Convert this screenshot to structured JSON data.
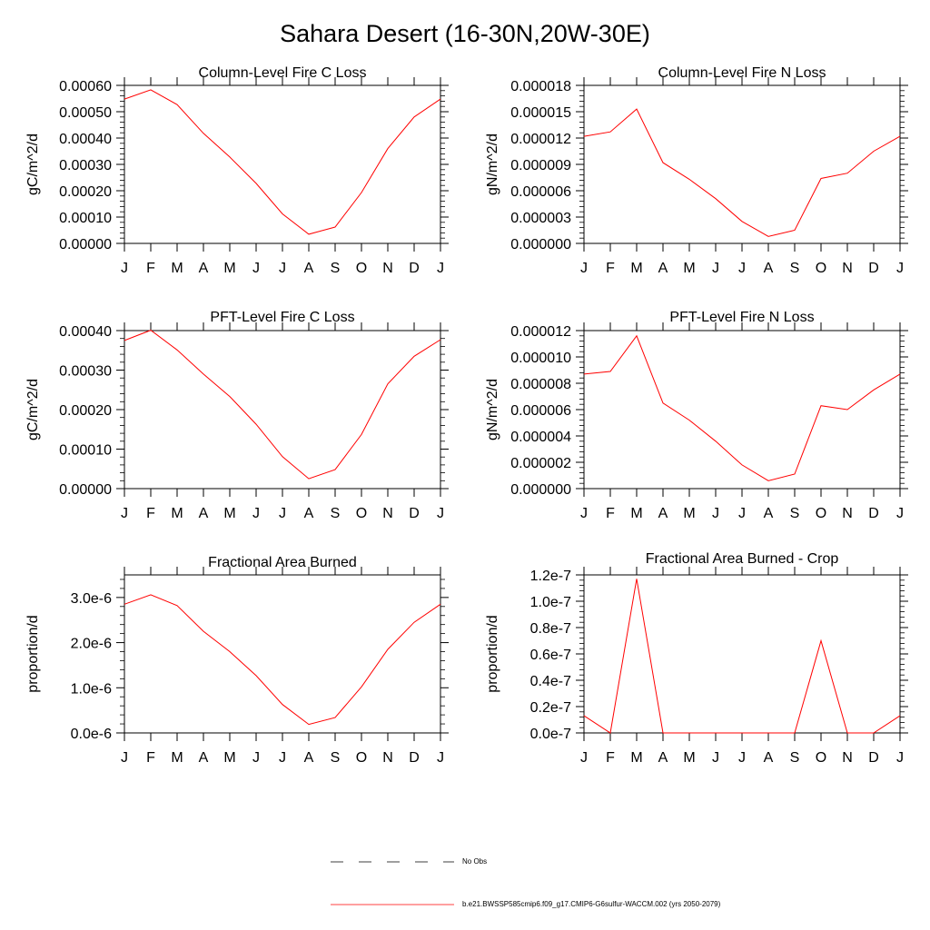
{
  "figure": {
    "title": "Sahara Desert (16-30N,20W-30E)"
  },
  "legend": {
    "entries": [
      {
        "label": "No Obs",
        "style": "dashed",
        "color": "#000000"
      },
      {
        "label": "b.e21.BWSSP585cmip6.f09_g17.CMIP6-G6sulfur-WACCM.002 (yrs 2050-2079)",
        "style": "solid",
        "color": "#ff0000"
      }
    ]
  },
  "colors": {
    "series": "#ff0000",
    "axes": "#000000"
  },
  "chart_data": [
    {
      "type": "line",
      "title": "Column-Level Fire C Loss",
      "ylabel": "gC/m^2/d",
      "categories": [
        "J",
        "F",
        "M",
        "A",
        "M",
        "J",
        "J",
        "A",
        "S",
        "O",
        "N",
        "D",
        "J"
      ],
      "ylim": [
        0,
        0.0006
      ],
      "yticks": [
        "0.00000",
        "0.00010",
        "0.00020",
        "0.00030",
        "0.00040",
        "0.00050",
        "0.00060"
      ],
      "series": [
        {
          "values": [
            0.000548,
            0.000583,
            0.000527,
            0.000418,
            0.000328,
            0.000228,
            0.000112,
            3.5e-05,
            6.2e-05,
            0.000193,
            0.00036,
            0.00048,
            0.000548
          ]
        }
      ]
    },
    {
      "type": "line",
      "title": "Column-Level Fire N Loss",
      "ylabel": "gN/m^2/d",
      "categories": [
        "J",
        "F",
        "M",
        "A",
        "M",
        "J",
        "J",
        "A",
        "S",
        "O",
        "N",
        "D",
        "J"
      ],
      "ylim": [
        0,
        1.8e-05
      ],
      "yticks": [
        "0.000000",
        "0.000003",
        "0.000006",
        "0.000009",
        "0.000012",
        "0.000015",
        "0.000018"
      ],
      "series": [
        {
          "values": [
            1.22e-05,
            1.27e-05,
            1.53e-05,
            9.2e-06,
            7.3e-06,
            5.1e-06,
            2.5e-06,
            8e-07,
            1.5e-06,
            7.4e-06,
            8e-06,
            1.05e-05,
            1.22e-05
          ]
        }
      ]
    },
    {
      "type": "line",
      "title": "PFT-Level Fire C Loss",
      "ylabel": "gC/m^2/d",
      "categories": [
        "J",
        "F",
        "M",
        "A",
        "M",
        "J",
        "J",
        "A",
        "S",
        "O",
        "N",
        "D",
        "J"
      ],
      "ylim": [
        0,
        0.0004
      ],
      "yticks": [
        "0.00000",
        "0.00010",
        "0.00020",
        "0.00030",
        "0.00040"
      ],
      "series": [
        {
          "values": [
            0.000375,
            0.000401,
            0.000351,
            0.00029,
            0.000233,
            0.000163,
            8.1e-05,
            2.5e-05,
            4.8e-05,
            0.000137,
            0.000265,
            0.000335,
            0.000377
          ]
        }
      ]
    },
    {
      "type": "line",
      "title": "PFT-Level Fire N Loss",
      "ylabel": "gN/m^2/d",
      "categories": [
        "J",
        "F",
        "M",
        "A",
        "M",
        "J",
        "J",
        "A",
        "S",
        "O",
        "N",
        "D",
        "J"
      ],
      "ylim": [
        0,
        1.2e-05
      ],
      "yticks": [
        "0.000000",
        "0.000002",
        "0.000004",
        "0.000006",
        "0.000008",
        "0.000010",
        "0.000012"
      ],
      "series": [
        {
          "values": [
            8.7e-06,
            8.9e-06,
            1.16e-05,
            6.5e-06,
            5.2e-06,
            3.6e-06,
            1.8e-06,
            6e-07,
            1.1e-06,
            6.3e-06,
            6e-06,
            7.5e-06,
            8.7e-06
          ]
        }
      ]
    },
    {
      "type": "line",
      "title": "Fractional Area Burned",
      "ylabel": "proportion/d",
      "categories": [
        "J",
        "F",
        "M",
        "A",
        "M",
        "J",
        "J",
        "A",
        "S",
        "O",
        "N",
        "D",
        "J"
      ],
      "ylim": [
        0,
        3.5e-06
      ],
      "yticks": [
        {
          "value": 0,
          "label": "0.0e-6"
        },
        {
          "value": 1e-06,
          "label": "1.0e-6"
        },
        {
          "value": 2e-06,
          "label": "2.0e-6"
        },
        {
          "value": 3e-06,
          "label": "3.0e-6"
        }
      ],
      "series": [
        {
          "values": [
            2.85e-06,
            3.06e-06,
            2.82e-06,
            2.25e-06,
            1.8e-06,
            1.27e-06,
            6.3e-07,
            1.9e-07,
            3.4e-07,
            1.02e-06,
            1.85e-06,
            2.45e-06,
            2.85e-06
          ]
        }
      ]
    },
    {
      "type": "line",
      "title": "Fractional Area Burned - Crop",
      "ylabel": "proportion/d",
      "categories": [
        "J",
        "F",
        "M",
        "A",
        "M",
        "J",
        "J",
        "A",
        "S",
        "O",
        "N",
        "D",
        "J"
      ],
      "ylim": [
        0,
        1.2e-07
      ],
      "yticks": [
        {
          "value": 0,
          "label": "0.0e-7"
        },
        {
          "value": 2e-08,
          "label": "0.2e-7"
        },
        {
          "value": 4e-08,
          "label": "0.4e-7"
        },
        {
          "value": 6e-08,
          "label": "0.6e-7"
        },
        {
          "value": 8e-08,
          "label": "0.8e-7"
        },
        {
          "value": 1e-07,
          "label": "1.0e-7"
        },
        {
          "value": 1.2e-07,
          "label": "1.2e-7"
        }
      ],
      "series": [
        {
          "values": [
            1.3e-08,
            0,
            1.17e-07,
            0,
            0,
            0,
            0,
            0,
            0,
            7e-08,
            0,
            0,
            1.3e-08
          ]
        }
      ]
    }
  ]
}
